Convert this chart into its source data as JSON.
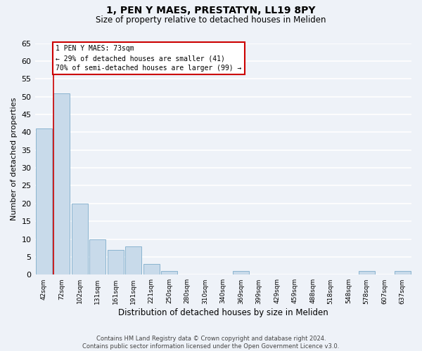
{
  "title_line1": "1, PEN Y MAES, PRESTATYN, LL19 8PY",
  "title_line2": "Size of property relative to detached houses in Meliden",
  "xlabel": "Distribution of detached houses by size in Meliden",
  "ylabel": "Number of detached properties",
  "bar_color": "#c8daea",
  "bar_edge_color": "#8ab4d0",
  "categories": [
    "42sqm",
    "72sqm",
    "102sqm",
    "131sqm",
    "161sqm",
    "191sqm",
    "221sqm",
    "250sqm",
    "280sqm",
    "310sqm",
    "340sqm",
    "369sqm",
    "399sqm",
    "429sqm",
    "459sqm",
    "488sqm",
    "518sqm",
    "548sqm",
    "578sqm",
    "607sqm",
    "637sqm"
  ],
  "values": [
    41,
    51,
    20,
    10,
    7,
    8,
    3,
    1,
    0,
    0,
    0,
    1,
    0,
    0,
    0,
    0,
    0,
    0,
    1,
    0,
    1
  ],
  "ylim_max": 65,
  "yticks": [
    0,
    5,
    10,
    15,
    20,
    25,
    30,
    35,
    40,
    45,
    50,
    55,
    60,
    65
  ],
  "property_bar_index": 1,
  "annotation_text": "1 PEN Y MAES: 73sqm\n← 29% of detached houses are smaller (41)\n70% of semi-detached houses are larger (99) →",
  "annotation_box_color": "#ffffff",
  "annotation_box_edge": "#cc0000",
  "property_line_color": "#cc0000",
  "footer_line1": "Contains HM Land Registry data © Crown copyright and database right 2024.",
  "footer_line2": "Contains public sector information licensed under the Open Government Licence v3.0.",
  "background_color": "#eef2f8",
  "grid_color": "#ffffff",
  "title_fontsize": 10,
  "subtitle_fontsize": 8.5,
  "ylabel_fontsize": 8,
  "xlabel_fontsize": 8.5,
  "ytick_fontsize": 8,
  "xtick_fontsize": 6.5,
  "annotation_fontsize": 7,
  "footer_fontsize": 6
}
